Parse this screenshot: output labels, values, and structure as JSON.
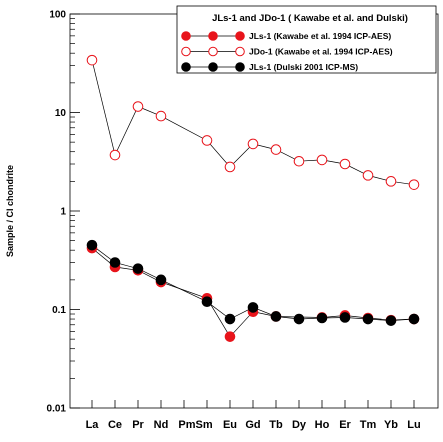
{
  "chart_data": {
    "type": "line",
    "title": "",
    "xlabel": "",
    "ylabel": "Sample / CI chondrite",
    "y_scale": "log",
    "ylim": [
      0.01,
      100
    ],
    "y_tick_labels": [
      "100",
      "10",
      "1",
      "0.1",
      "0.01"
    ],
    "y_tick_values": [
      100,
      10,
      1,
      0.1,
      0.01
    ],
    "categories": [
      "La",
      "Ce",
      "Pr",
      "Nd",
      "Pm",
      "Sm",
      "Eu",
      "Gd",
      "Tb",
      "Dy",
      "Ho",
      "Er",
      "Tm",
      "Yb",
      "Lu"
    ],
    "category_labels": [
      "La",
      "Ce",
      "Pr",
      "Nd",
      "PmSm",
      "Eu",
      "Gd",
      "Tb",
      "Dy",
      "Ho",
      "Er",
      "Tm",
      "Yb",
      "Lu"
    ],
    "grid": false,
    "legend": {
      "title": "JLs-1 and JDo-1 ( Kawabe et al. and Dulski)",
      "placement": "top-right"
    },
    "series": [
      {
        "name": "JLs-1 (Kawabe et al. 1994 ICP-AES)",
        "marker": "filled-circle",
        "color": "#e8141b",
        "edge": "#e8141b",
        "values": [
          0.42,
          0.27,
          0.25,
          0.19,
          null,
          0.13,
          0.053,
          0.095,
          0.085,
          null,
          0.083,
          0.087,
          0.082,
          0.078,
          0.08
        ]
      },
      {
        "name": "JDo-1 (Kawabe et al. 1994 ICP-AES)",
        "marker": "open-circle",
        "color": "#e8141b",
        "edge": "#e8141b",
        "values": [
          34,
          3.7,
          11.5,
          9.2,
          null,
          5.2,
          2.8,
          4.8,
          4.2,
          3.2,
          3.3,
          3.0,
          2.3,
          2.0,
          1.85
        ]
      },
      {
        "name": "JLs-1 (Dulski 2001 ICP-MS)",
        "marker": "filled-circle",
        "color": "#000000",
        "edge": "#000000",
        "values": [
          0.45,
          0.3,
          0.26,
          0.2,
          null,
          0.12,
          0.08,
          0.105,
          0.085,
          0.08,
          0.082,
          0.083,
          0.08,
          0.077,
          0.08
        ]
      }
    ]
  }
}
